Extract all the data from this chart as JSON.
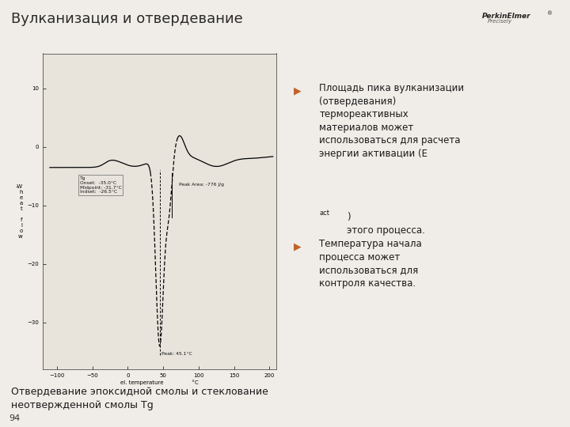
{
  "title": "Вулканизация и отвердевание",
  "subtitle": "Отвердевание эпоксидной смолы и стеклование\nнеотвержденной смолы Tg",
  "page_number": "94",
  "ylabel_chars": [
    "-W",
    "h",
    "e",
    "a",
    "t",
    "",
    "f",
    "l",
    "o",
    "w"
  ],
  "xlabel": "el. temperature",
  "xunits": "°C",
  "x_ticks": [
    -100,
    -50,
    0,
    50,
    100,
    150,
    200
  ],
  "y_ticks": [
    -30,
    -20,
    -10,
    0,
    10
  ],
  "xlim": [
    -120,
    210
  ],
  "ylim": [
    -38,
    16
  ],
  "bg_color": "#f0ede8",
  "plot_bg": "#e8e4dc",
  "line_color": "#000000",
  "annotation_tg": "Tg\nOnset:  -35.0°C\nMidpoint: -31.7°C\nIndset:  -26.5°C",
  "annotation_peak": "Peak: 45.1°C",
  "annotation_area": "Peak Area: -776 J/g",
  "bullet_color": "#c0622a",
  "header_color": "#4a3c5a"
}
